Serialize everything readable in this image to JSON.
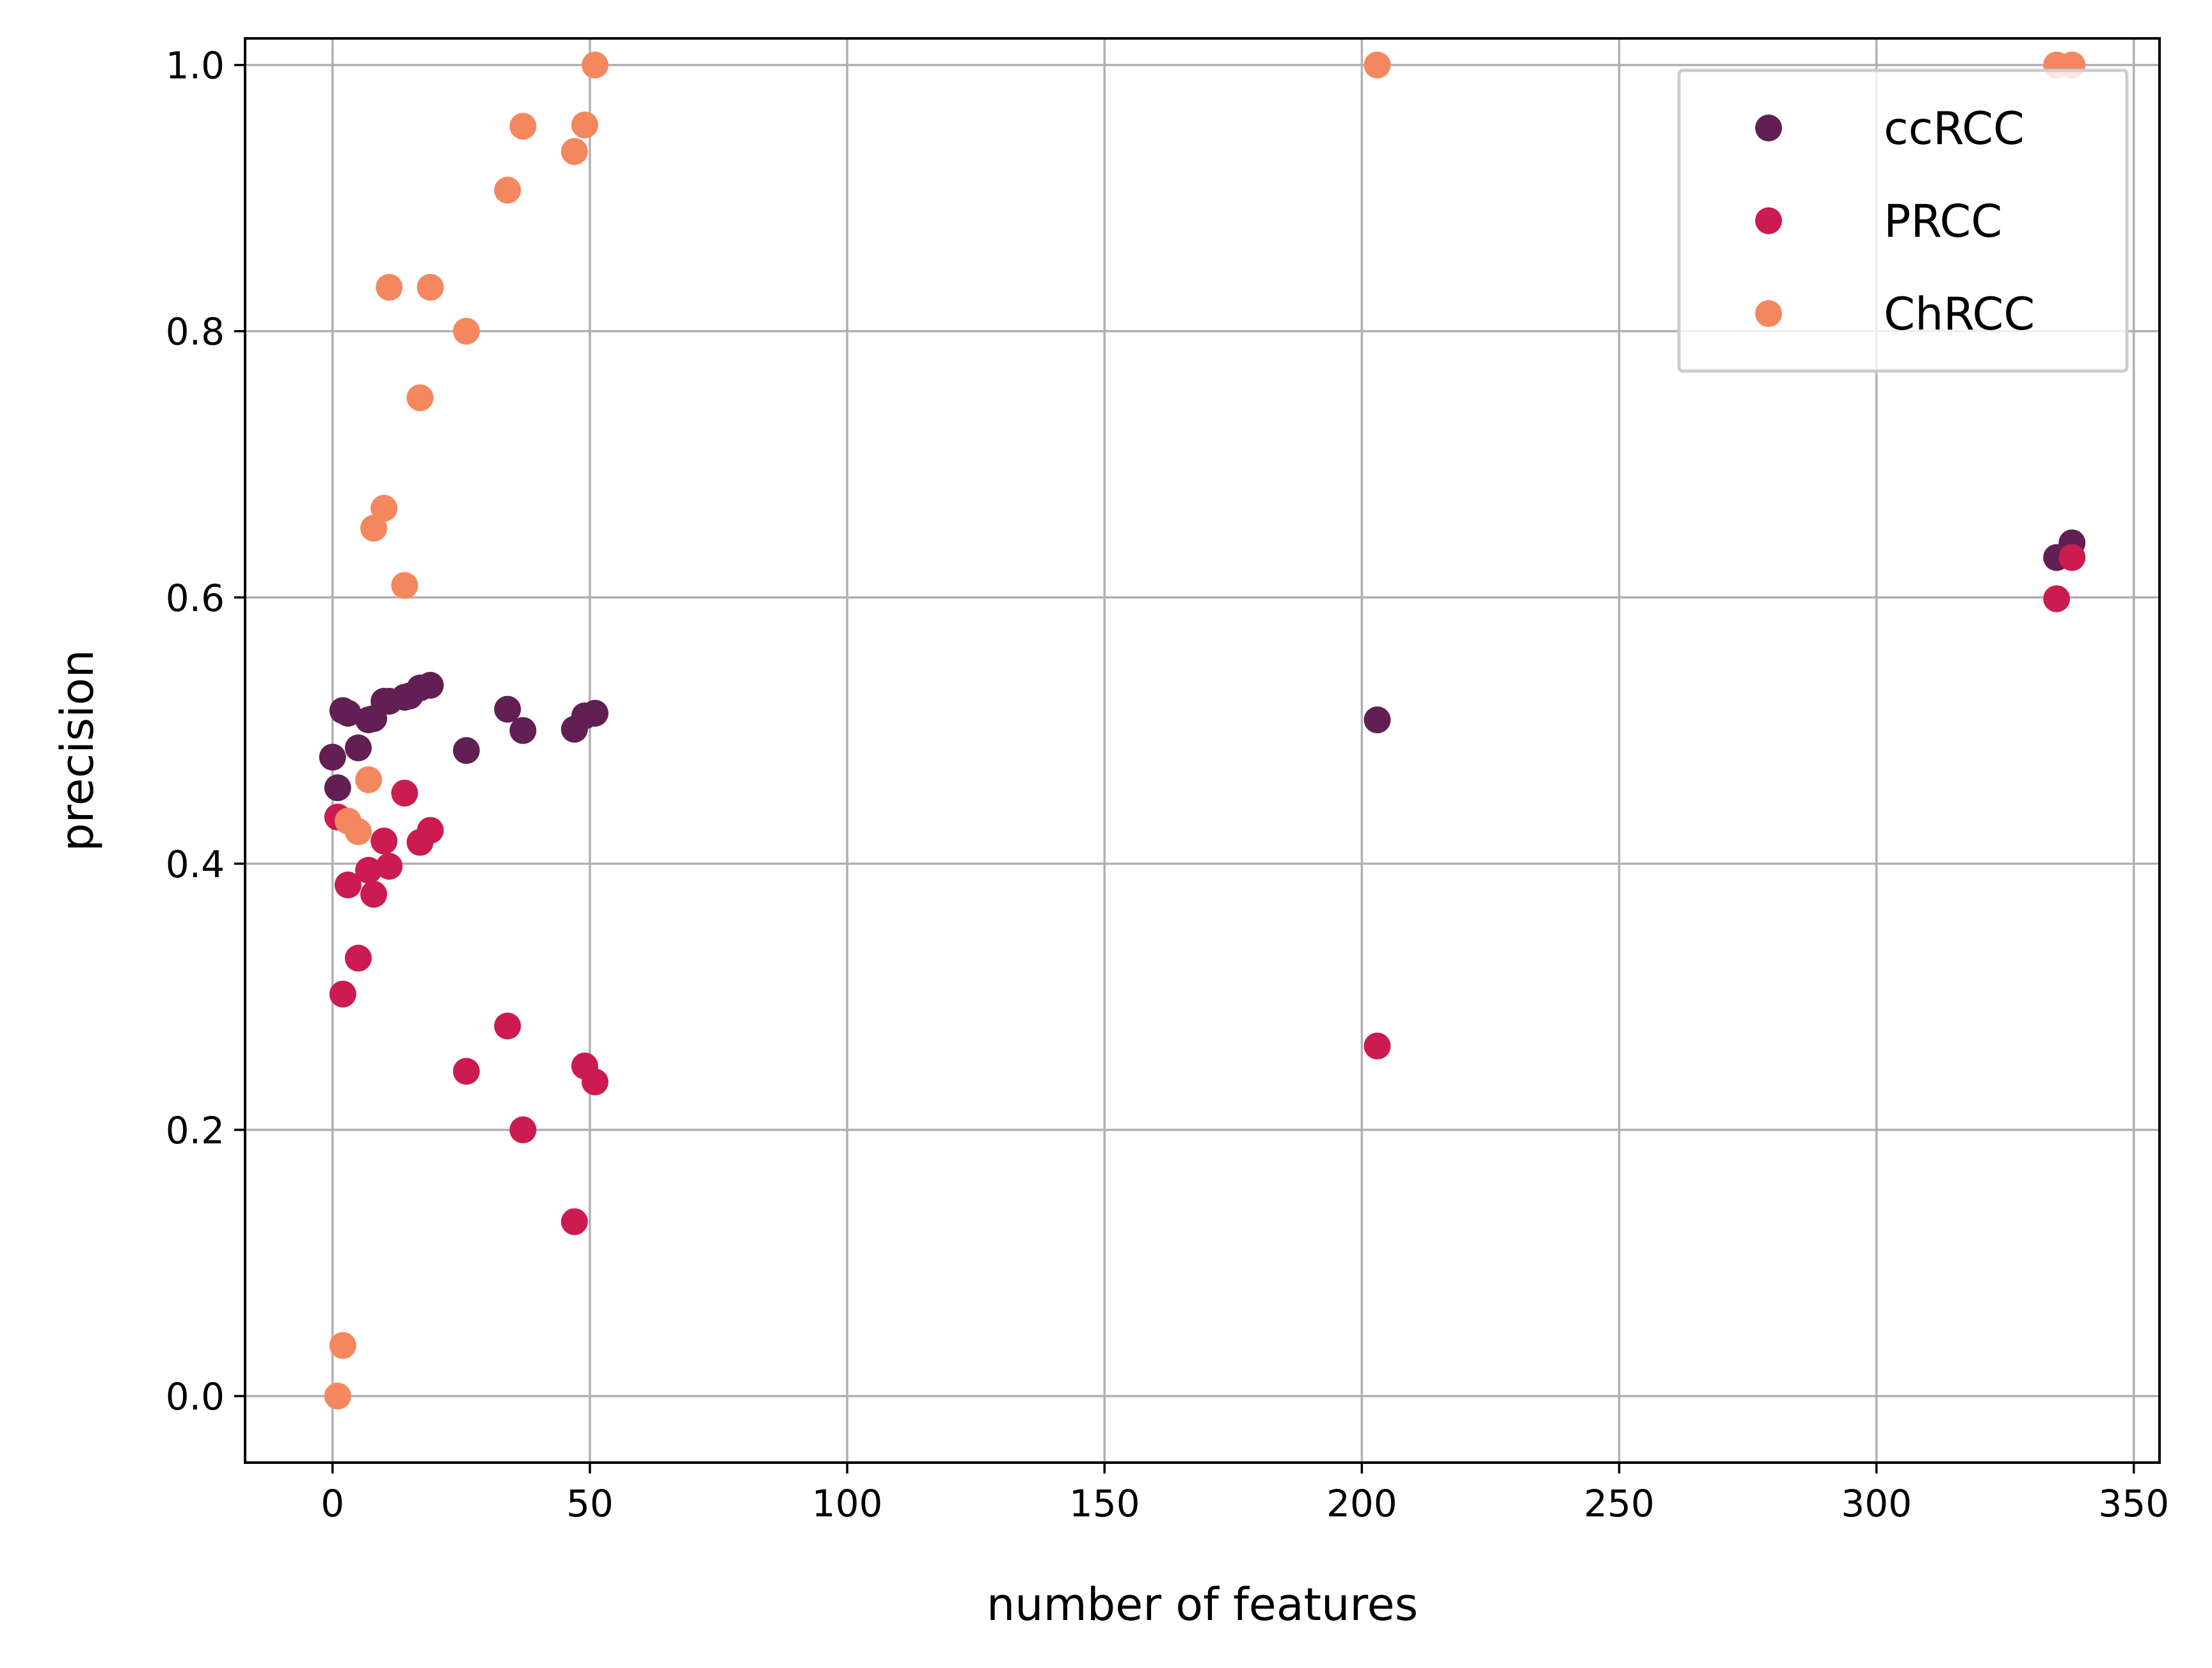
{
  "chart_data": {
    "type": "scatter",
    "title": "",
    "xlabel": "number of features",
    "ylabel": "precision",
    "xlim": [
      -17,
      355
    ],
    "ylim": [
      -0.05,
      1.02
    ],
    "xticks": [
      0,
      50,
      100,
      150,
      200,
      250,
      300,
      350
    ],
    "yticks": [
      0.0,
      0.2,
      0.4,
      0.6,
      0.8,
      1.0
    ],
    "xtick_labels": [
      "0",
      "50",
      "100",
      "150",
      "200",
      "250",
      "300",
      "350"
    ],
    "ytick_labels": [
      "0.0",
      "0.2",
      "0.4",
      "0.6",
      "0.8",
      "1.0"
    ],
    "grid": true,
    "legend_position": "top-right",
    "series": [
      {
        "name": "ccRCC",
        "color": "#611f53",
        "points": [
          [
            0,
            0.48
          ],
          [
            1,
            0.457
          ],
          [
            2,
            0.515
          ],
          [
            3,
            0.513
          ],
          [
            5,
            0.487
          ],
          [
            7,
            0.508
          ],
          [
            8,
            0.509
          ],
          [
            10,
            0.522
          ],
          [
            11,
            0.522
          ],
          [
            14,
            0.525
          ],
          [
            15,
            0.526
          ],
          [
            17,
            0.532
          ],
          [
            19,
            0.534
          ],
          [
            26,
            0.485
          ],
          [
            34,
            0.516
          ],
          [
            37,
            0.5
          ],
          [
            47,
            0.501
          ],
          [
            49,
            0.511
          ],
          [
            51,
            0.513
          ],
          [
            203,
            0.508
          ],
          [
            335,
            0.63
          ],
          [
            338,
            0.641
          ]
        ]
      },
      {
        "name": "PRCC",
        "color": "#cb1b4f",
        "points": [
          [
            1,
            0.435
          ],
          [
            2,
            0.302
          ],
          [
            3,
            0.384
          ],
          [
            5,
            0.329
          ],
          [
            7,
            0.395
          ],
          [
            8,
            0.377
          ],
          [
            10,
            0.417
          ],
          [
            11,
            0.398
          ],
          [
            14,
            0.453
          ],
          [
            17,
            0.416
          ],
          [
            19,
            0.425
          ],
          [
            26,
            0.244
          ],
          [
            34,
            0.278
          ],
          [
            37,
            0.2
          ],
          [
            47,
            0.131
          ],
          [
            49,
            0.248
          ],
          [
            51,
            0.236
          ],
          [
            203,
            0.263
          ],
          [
            335,
            0.599
          ],
          [
            338,
            0.63
          ]
        ]
      },
      {
        "name": "ChRCC",
        "color": "#f4875e",
        "points": [
          [
            1,
            0.0
          ],
          [
            2,
            0.038
          ],
          [
            3,
            0.432
          ],
          [
            5,
            0.424
          ],
          [
            7,
            0.463
          ],
          [
            8,
            0.652
          ],
          [
            10,
            0.667
          ],
          [
            11,
            0.833
          ],
          [
            14,
            0.609
          ],
          [
            17,
            0.75
          ],
          [
            19,
            0.833
          ],
          [
            26,
            0.8
          ],
          [
            34,
            0.906
          ],
          [
            37,
            0.954
          ],
          [
            47,
            0.935
          ],
          [
            49,
            0.955
          ],
          [
            51,
            1.0
          ],
          [
            203,
            1.0
          ],
          [
            335,
            1.0
          ],
          [
            338,
            1.0
          ]
        ]
      }
    ]
  }
}
